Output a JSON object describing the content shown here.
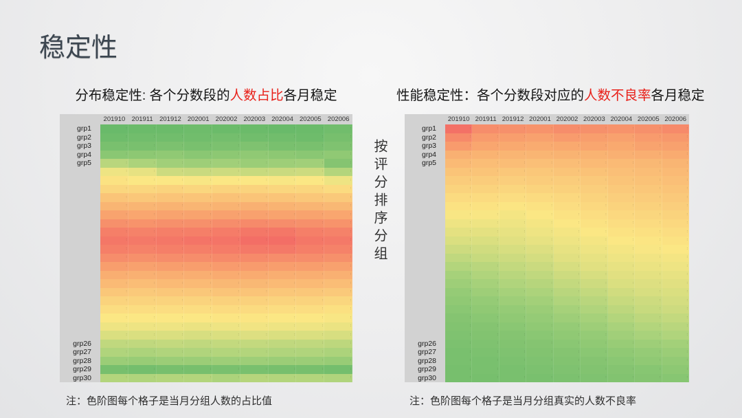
{
  "slide": {
    "title": "稳定性",
    "vertical_label": "按评分排序分组",
    "colors": {
      "title_text": "#3c4650",
      "highlight_red": "#e8211a",
      "heatmap_header_bg": "#d2d2d2",
      "background_light": "#f7f7f7",
      "background_dark": "#e3e4e6"
    }
  },
  "chart_data": [
    {
      "type": "heatmap",
      "position": "left",
      "subtitle": {
        "pre": "分布稳定性: 各个分数段的",
        "highlight": "人数占比",
        "post": "各月稳定"
      },
      "note": "注：色阶图每个格子是当月分组人数的占比值",
      "x_labels": [
        "201910",
        "201911",
        "201912",
        "202001",
        "202002",
        "202003",
        "202004",
        "202005",
        "202006"
      ],
      "row_labels": [
        "grp1",
        "grp2",
        "grp3",
        "grp4",
        "grp5",
        "",
        "",
        "",
        "",
        "",
        "",
        "",
        "",
        "",
        "",
        "",
        "",
        "",
        "",
        "",
        "",
        "",
        "",
        "",
        "",
        "grp26",
        "grp27",
        "grp28",
        "grp29",
        "grp30"
      ],
      "value_meaning": "当月分组人数占比（0=低/绿, 1=高/红）",
      "value_range": [
        0,
        1
      ],
      "colormap_stops": [
        [
          0,
          "#63b868"
        ],
        [
          0.25,
          "#a9d27b"
        ],
        [
          0.5,
          "#fbe784"
        ],
        [
          0.75,
          "#f9a96f"
        ],
        [
          1,
          "#f26364"
        ]
      ],
      "values": [
        [
          0.02,
          0.03,
          0.03,
          0.04,
          0.03,
          0.03,
          0.02,
          0.03,
          0.05
        ],
        [
          0.04,
          0.05,
          0.05,
          0.05,
          0.06,
          0.05,
          0.05,
          0.04,
          0.07
        ],
        [
          0.08,
          0.08,
          0.09,
          0.08,
          0.09,
          0.1,
          0.08,
          0.08,
          0.1
        ],
        [
          0.14,
          0.15,
          0.16,
          0.14,
          0.15,
          0.16,
          0.15,
          0.14,
          0.16
        ],
        [
          0.3,
          0.26,
          0.22,
          0.21,
          0.22,
          0.2,
          0.21,
          0.22,
          0.12
        ],
        [
          0.46,
          0.44,
          0.36,
          0.35,
          0.36,
          0.34,
          0.35,
          0.36,
          0.28
        ],
        [
          0.52,
          0.5,
          0.5,
          0.49,
          0.5,
          0.5,
          0.49,
          0.5,
          0.46
        ],
        [
          0.57,
          0.57,
          0.58,
          0.57,
          0.58,
          0.58,
          0.57,
          0.57,
          0.55
        ],
        [
          0.64,
          0.63,
          0.64,
          0.64,
          0.65,
          0.64,
          0.64,
          0.63,
          0.62
        ],
        [
          0.7,
          0.7,
          0.71,
          0.7,
          0.71,
          0.72,
          0.71,
          0.7,
          0.69
        ],
        [
          0.77,
          0.76,
          0.77,
          0.77,
          0.78,
          0.78,
          0.77,
          0.77,
          0.76
        ],
        [
          0.84,
          0.83,
          0.84,
          0.84,
          0.85,
          0.86,
          0.85,
          0.84,
          0.83
        ],
        [
          0.9,
          0.89,
          0.9,
          0.9,
          0.91,
          0.93,
          0.93,
          0.9,
          0.89
        ],
        [
          0.93,
          0.92,
          0.93,
          0.94,
          0.94,
          0.96,
          0.96,
          0.93,
          0.92
        ],
        [
          0.9,
          0.89,
          0.9,
          0.9,
          0.91,
          0.92,
          0.92,
          0.9,
          0.89
        ],
        [
          0.85,
          0.84,
          0.85,
          0.85,
          0.86,
          0.86,
          0.85,
          0.85,
          0.84
        ],
        [
          0.79,
          0.78,
          0.79,
          0.79,
          0.8,
          0.8,
          0.79,
          0.79,
          0.78
        ],
        [
          0.73,
          0.72,
          0.73,
          0.73,
          0.74,
          0.74,
          0.73,
          0.73,
          0.72
        ],
        [
          0.68,
          0.67,
          0.68,
          0.68,
          0.69,
          0.69,
          0.68,
          0.68,
          0.67
        ],
        [
          0.63,
          0.62,
          0.63,
          0.63,
          0.64,
          0.64,
          0.63,
          0.63,
          0.62
        ],
        [
          0.58,
          0.58,
          0.58,
          0.58,
          0.59,
          0.59,
          0.58,
          0.58,
          0.57
        ],
        [
          0.54,
          0.54,
          0.54,
          0.54,
          0.55,
          0.55,
          0.54,
          0.54,
          0.53
        ],
        [
          0.5,
          0.5,
          0.5,
          0.5,
          0.51,
          0.51,
          0.5,
          0.5,
          0.49
        ],
        [
          0.46,
          0.46,
          0.46,
          0.45,
          0.46,
          0.47,
          0.46,
          0.46,
          0.45
        ],
        [
          0.4,
          0.4,
          0.4,
          0.39,
          0.4,
          0.41,
          0.4,
          0.4,
          0.39
        ],
        [
          0.32,
          0.32,
          0.33,
          0.32,
          0.33,
          0.33,
          0.32,
          0.32,
          0.31
        ],
        [
          0.27,
          0.26,
          0.27,
          0.27,
          0.28,
          0.28,
          0.27,
          0.27,
          0.26
        ],
        [
          0.2,
          0.19,
          0.2,
          0.2,
          0.21,
          0.21,
          0.2,
          0.2,
          0.19
        ],
        [
          0.07,
          0.06,
          0.07,
          0.07,
          0.08,
          0.08,
          0.07,
          0.07,
          0.06
        ],
        [
          0.28,
          0.27,
          0.28,
          0.28,
          0.26,
          0.29,
          0.28,
          0.28,
          0.27
        ]
      ]
    },
    {
      "type": "heatmap",
      "position": "right",
      "subtitle": {
        "pre": "性能稳定性：各个分数段对应的",
        "highlight": "人数不良率",
        "post": "各月稳定"
      },
      "note": "注：色阶图每个格子是当月分组真实的人数不良率",
      "x_labels": [
        "201910",
        "201911",
        "201912",
        "202001",
        "202002",
        "202003",
        "202004",
        "202005",
        "202006"
      ],
      "row_labels": [
        "grp1",
        "grp2",
        "grp3",
        "grp4",
        "grp5",
        "",
        "",
        "",
        "",
        "",
        "",
        "",
        "",
        "",
        "",
        "",
        "",
        "",
        "",
        "",
        "",
        "",
        "",
        "",
        "",
        "grp26",
        "grp27",
        "grp28",
        "grp29",
        "grp30"
      ],
      "value_meaning": "当月分组真实人数不良率（0=低/绿, 1=高/红）",
      "value_range": [
        0,
        1
      ],
      "colormap_stops": [
        [
          0,
          "#63b868"
        ],
        [
          0.25,
          "#a9d27b"
        ],
        [
          0.5,
          "#fbe784"
        ],
        [
          0.75,
          "#f9a96f"
        ],
        [
          1,
          "#f26364"
        ]
      ],
      "values": [
        [
          0.95,
          0.85,
          0.84,
          0.83,
          0.85,
          0.84,
          0.83,
          0.84,
          0.86
        ],
        [
          0.86,
          0.8,
          0.79,
          0.78,
          0.8,
          0.79,
          0.78,
          0.8,
          0.81
        ],
        [
          0.8,
          0.76,
          0.75,
          0.74,
          0.75,
          0.76,
          0.75,
          0.77,
          0.78
        ],
        [
          0.72,
          0.71,
          0.7,
          0.7,
          0.71,
          0.71,
          0.72,
          0.73,
          0.74
        ],
        [
          0.68,
          0.67,
          0.67,
          0.66,
          0.67,
          0.68,
          0.68,
          0.69,
          0.7
        ],
        [
          0.64,
          0.64,
          0.63,
          0.63,
          0.64,
          0.65,
          0.66,
          0.67,
          0.68
        ],
        [
          0.61,
          0.61,
          0.6,
          0.61,
          0.61,
          0.62,
          0.64,
          0.65,
          0.66
        ],
        [
          0.58,
          0.58,
          0.57,
          0.58,
          0.59,
          0.6,
          0.62,
          0.63,
          0.64
        ],
        [
          0.55,
          0.55,
          0.54,
          0.55,
          0.56,
          0.58,
          0.6,
          0.61,
          0.62
        ],
        [
          0.52,
          0.52,
          0.51,
          0.52,
          0.54,
          0.56,
          0.58,
          0.59,
          0.6
        ],
        [
          0.49,
          0.49,
          0.48,
          0.5,
          0.52,
          0.54,
          0.56,
          0.57,
          0.58
        ],
        [
          0.46,
          0.46,
          0.46,
          0.48,
          0.5,
          0.52,
          0.54,
          0.55,
          0.56
        ],
        [
          0.43,
          0.43,
          0.44,
          0.46,
          0.48,
          0.5,
          0.52,
          0.53,
          0.54
        ],
        [
          0.4,
          0.4,
          0.42,
          0.44,
          0.46,
          0.48,
          0.5,
          0.51,
          0.52
        ],
        [
          0.36,
          0.37,
          0.39,
          0.41,
          0.44,
          0.46,
          0.48,
          0.49,
          0.5
        ],
        [
          0.32,
          0.34,
          0.36,
          0.38,
          0.42,
          0.44,
          0.46,
          0.47,
          0.48
        ],
        [
          0.28,
          0.3,
          0.33,
          0.35,
          0.39,
          0.42,
          0.44,
          0.45,
          0.46
        ],
        [
          0.24,
          0.27,
          0.3,
          0.32,
          0.36,
          0.39,
          0.42,
          0.43,
          0.44
        ],
        [
          0.21,
          0.24,
          0.27,
          0.29,
          0.33,
          0.36,
          0.4,
          0.41,
          0.42
        ],
        [
          0.18,
          0.21,
          0.24,
          0.26,
          0.3,
          0.33,
          0.37,
          0.39,
          0.4
        ],
        [
          0.16,
          0.18,
          0.21,
          0.23,
          0.27,
          0.3,
          0.34,
          0.36,
          0.38
        ],
        [
          0.14,
          0.16,
          0.18,
          0.2,
          0.24,
          0.27,
          0.31,
          0.34,
          0.36
        ],
        [
          0.12,
          0.14,
          0.16,
          0.18,
          0.21,
          0.24,
          0.28,
          0.31,
          0.33
        ],
        [
          0.11,
          0.12,
          0.14,
          0.16,
          0.18,
          0.21,
          0.25,
          0.28,
          0.3
        ],
        [
          0.1,
          0.11,
          0.12,
          0.14,
          0.16,
          0.18,
          0.22,
          0.25,
          0.27
        ],
        [
          0.09,
          0.1,
          0.11,
          0.12,
          0.14,
          0.16,
          0.19,
          0.21,
          0.23
        ],
        [
          0.08,
          0.09,
          0.1,
          0.11,
          0.12,
          0.14,
          0.16,
          0.18,
          0.2
        ],
        [
          0.08,
          0.08,
          0.09,
          0.1,
          0.11,
          0.12,
          0.14,
          0.16,
          0.17
        ],
        [
          0.07,
          0.08,
          0.08,
          0.09,
          0.1,
          0.11,
          0.12,
          0.13,
          0.15
        ],
        [
          0.07,
          0.07,
          0.08,
          0.08,
          0.09,
          0.1,
          0.11,
          0.12,
          0.13
        ]
      ]
    }
  ]
}
